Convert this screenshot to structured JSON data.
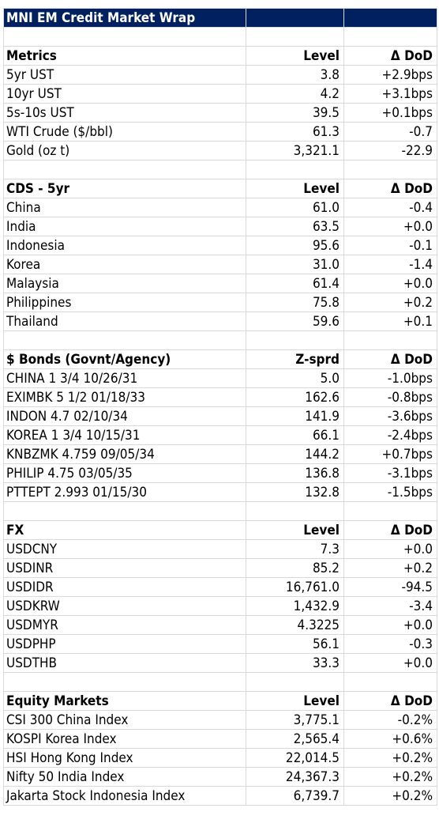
{
  "title": "MNI EM Credit Market Wrap",
  "sections": [
    {
      "header": [
        "Metrics",
        "Level",
        "Δ DoD"
      ],
      "rows": [
        [
          "5yr UST",
          "3.8",
          "+2.9bps"
        ],
        [
          "10yr UST",
          "4.2",
          "+3.1bps"
        ],
        [
          "5s-10s UST",
          "39.5",
          "+0.1bps"
        ],
        [
          "WTI Crude ($/bbl)",
          "61.3",
          "-0.7"
        ],
        [
          "Gold (oz t)",
          "3,321.1",
          "-22.9"
        ]
      ]
    },
    {
      "header": [
        "CDS - 5yr",
        "Level",
        "Δ DoD"
      ],
      "rows": [
        [
          "China",
          "61.0",
          "-0.4"
        ],
        [
          "India",
          "63.5",
          "+0.0"
        ],
        [
          "Indonesia",
          "95.6",
          "-0.1"
        ],
        [
          "Korea",
          "31.0",
          "-1.4"
        ],
        [
          "Malaysia",
          "61.4",
          "+0.0"
        ],
        [
          "Philippines",
          "75.8",
          "+0.2"
        ],
        [
          "Thailand",
          "59.6",
          "+0.1"
        ]
      ]
    },
    {
      "header": [
        "$ Bonds (Govnt/Agency)",
        "Z-sprd",
        "Δ DoD"
      ],
      "rows": [
        [
          "CHINA 1 3/4 10/26/31",
          "5.0",
          "-1.0bps"
        ],
        [
          "EXIMBK 5 1/2 01/18/33",
          "162.6",
          "-0.8bps"
        ],
        [
          "INDON 4.7 02/10/34",
          "141.9",
          "-3.6bps"
        ],
        [
          "KOREA 1 3/4 10/15/31",
          "66.1",
          "-2.4bps"
        ],
        [
          "KNBZMK 4.759 09/05/34",
          "144.2",
          "+0.7bps"
        ],
        [
          "PHILIP 4.75 03/05/35",
          "136.8",
          "-3.1bps"
        ],
        [
          "PTTEPT 2.993 01/15/30",
          "132.8",
          "-1.5bps"
        ]
      ]
    },
    {
      "header": [
        "FX",
        "Level",
        "Δ DoD"
      ],
      "rows": [
        [
          "USDCNY",
          "7.3",
          "+0.0"
        ],
        [
          "USDINR",
          "85.2",
          "+0.2"
        ],
        [
          "USDIDR",
          "16,761.0",
          "-94.5"
        ],
        [
          "USDKRW",
          "1,432.9",
          "-3.4"
        ],
        [
          "USDMYR",
          "4.3225",
          "+0.0"
        ],
        [
          "USDPHP",
          "56.1",
          "-0.3"
        ],
        [
          "USDTHB",
          "33.3",
          "+0.0"
        ]
      ]
    },
    {
      "header": [
        "Equity Markets",
        "Level",
        "Δ DoD"
      ],
      "rows": [
        [
          "CSI 300 China Index",
          "3,775.1",
          "-0.2%"
        ],
        [
          "KOSPI Korea Index",
          "2,565.4",
          "+0.6%"
        ],
        [
          "HSI Hong Kong Index",
          "22,014.5",
          "+0.2%"
        ],
        [
          "Nifty 50 India Index",
          "24,367.3",
          "+0.2%"
        ],
        [
          "Jakarta Stock Indonesia Index",
          "6,739.7",
          "+0.2%"
        ]
      ]
    }
  ]
}
